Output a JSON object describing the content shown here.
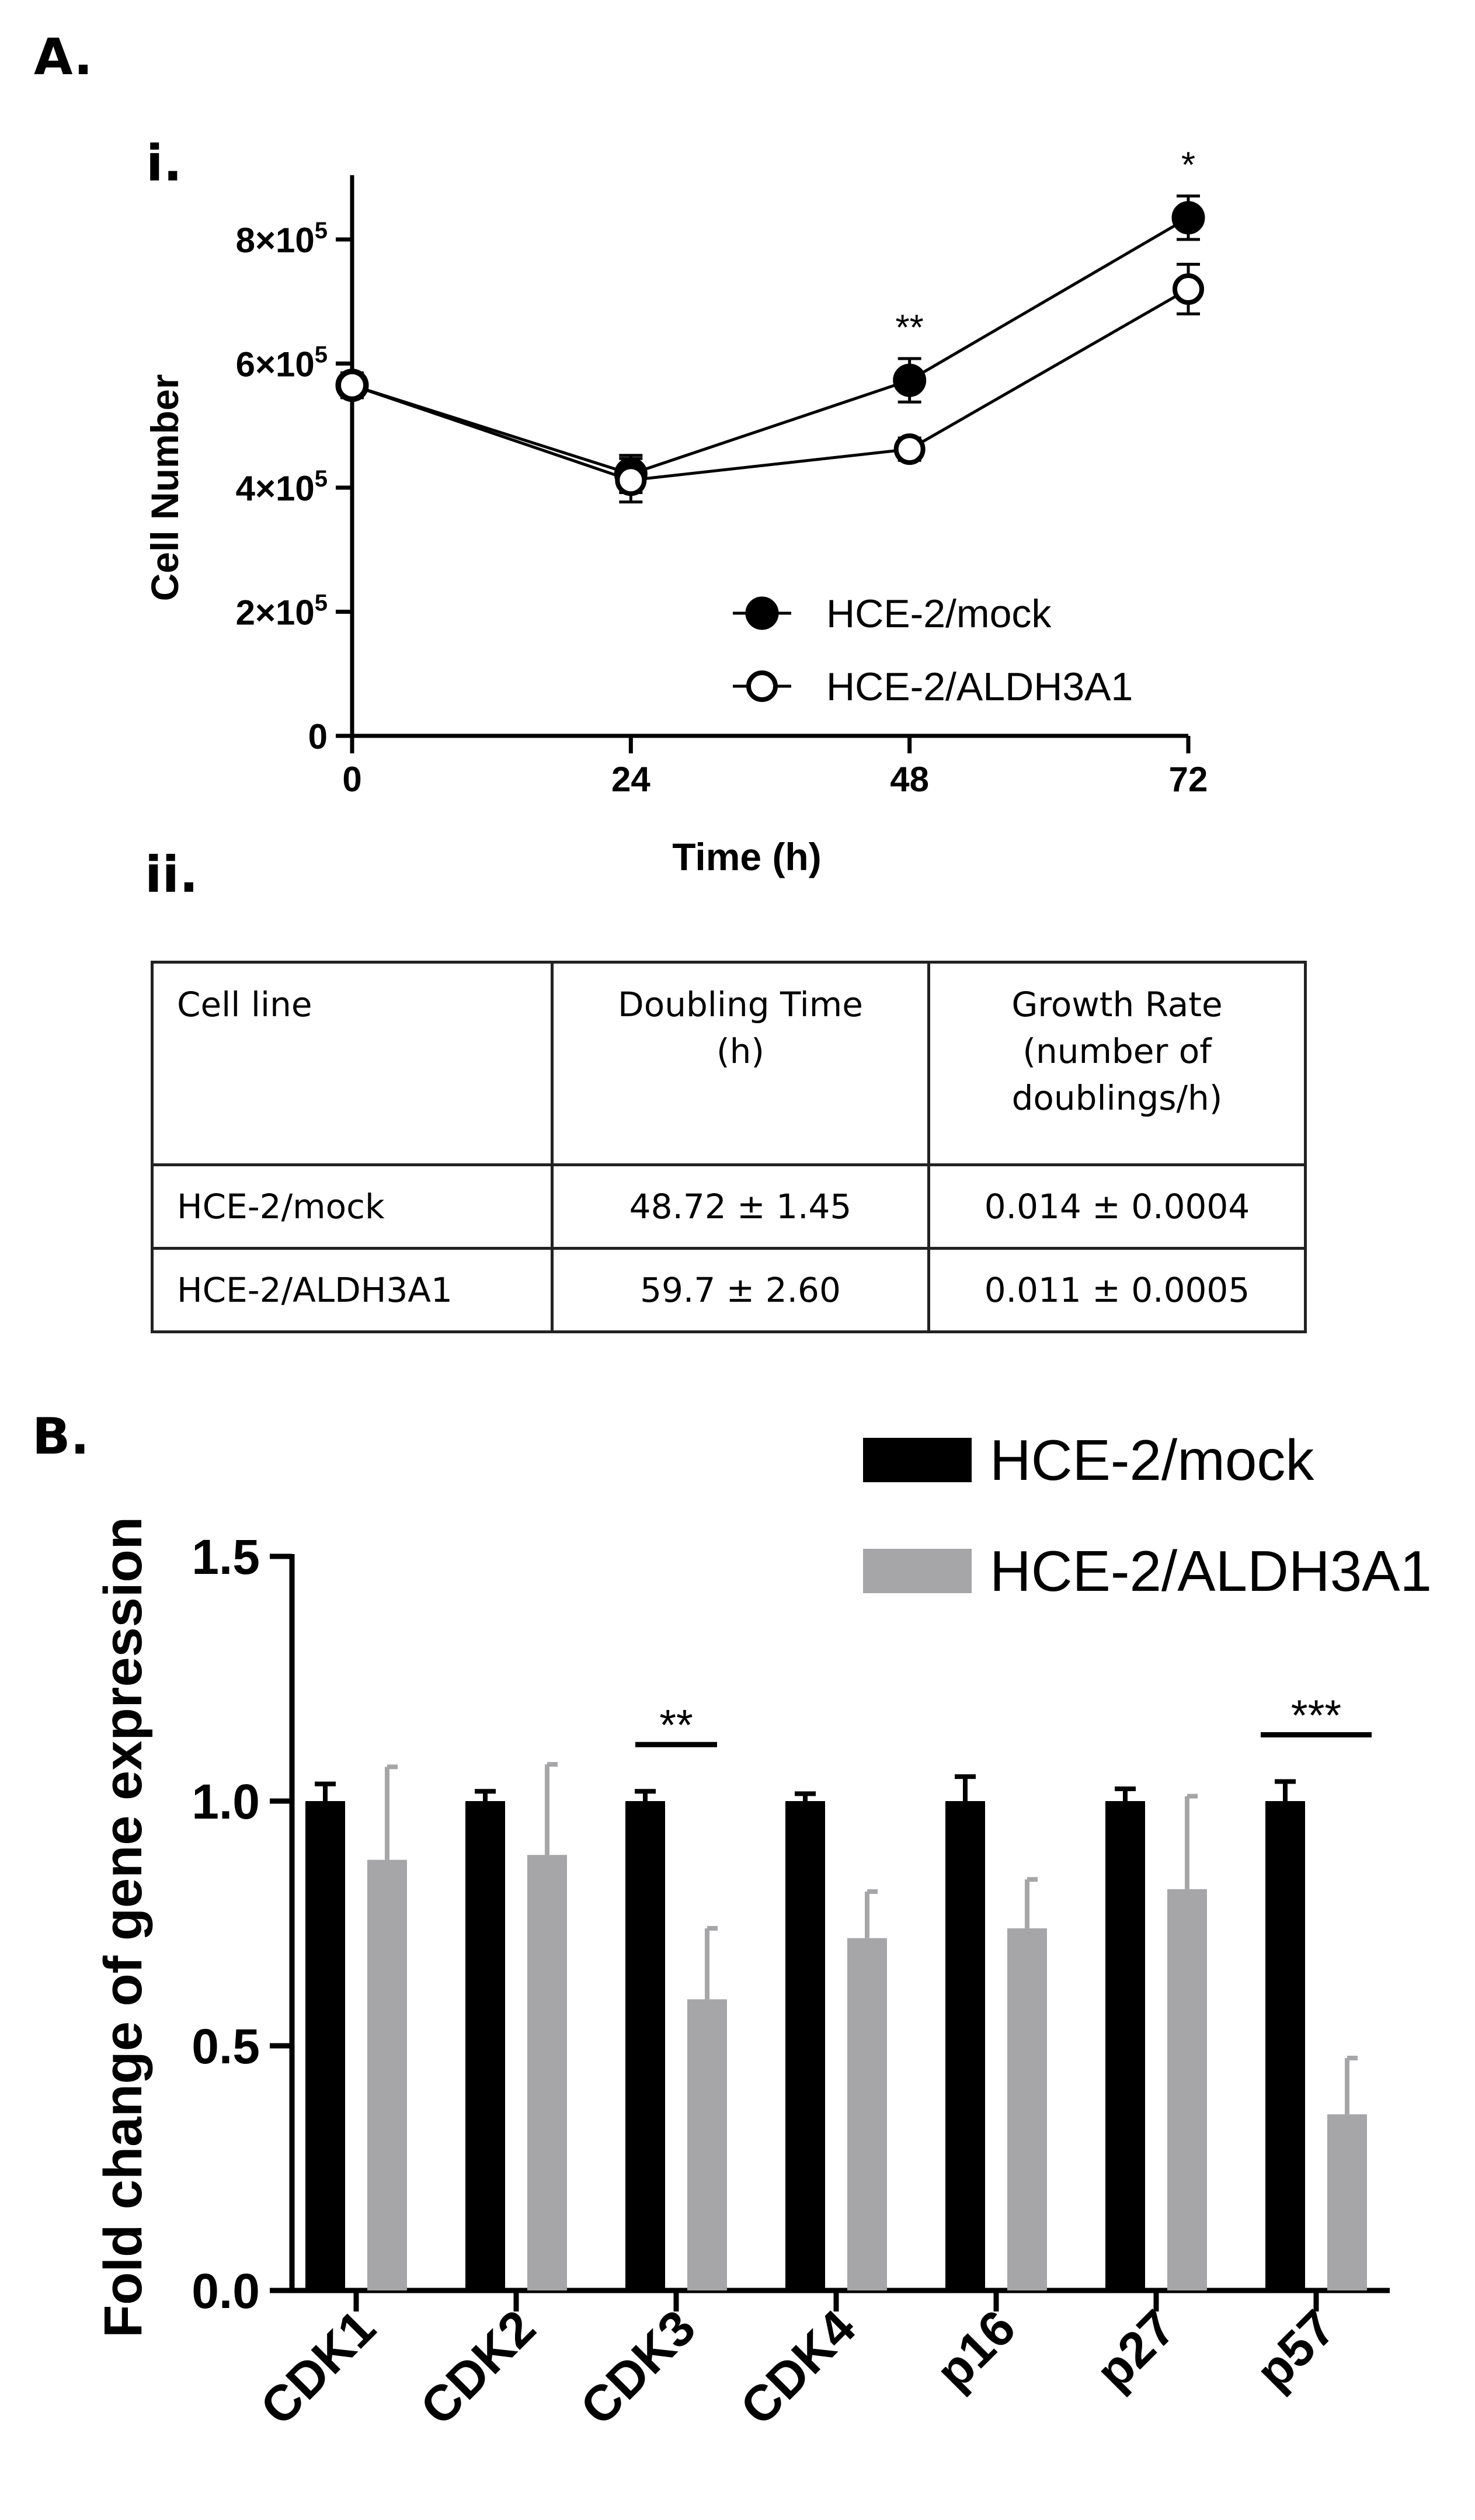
{
  "labels": {
    "A": "A.",
    "i": "i.",
    "ii": "ii.",
    "B": "B."
  },
  "chart_data": [
    {
      "type": "line",
      "xlabel": "Time (h)",
      "ylabel": "Cell Number",
      "x": [
        0,
        24,
        48,
        72
      ],
      "xticks": [
        "0",
        "24",
        "48",
        "72"
      ],
      "yticks": [
        {
          "value": 0,
          "base": "0",
          "exp": ""
        },
        {
          "value": 200000,
          "base": "2×10",
          "exp": "5"
        },
        {
          "value": 400000,
          "base": "4×10",
          "exp": "5"
        },
        {
          "value": 600000,
          "base": "6×10",
          "exp": "5"
        },
        {
          "value": 800000,
          "base": "8×10",
          "exp": "5"
        }
      ],
      "ylim": [
        0,
        800000
      ],
      "series": [
        {
          "name": "HCE-2/mock",
          "marker": "filled-circle",
          "values": [
            565000,
            422000,
            573000,
            835000
          ],
          "errors": [
            20000,
            30000,
            35000,
            35000
          ]
        },
        {
          "name": "HCE-2/ALDH3A1",
          "marker": "open-circle",
          "values": [
            565000,
            412000,
            462000,
            720000
          ],
          "errors": [
            20000,
            35000,
            18000,
            40000
          ]
        }
      ],
      "annotations": [
        {
          "x": 48,
          "text": "**"
        },
        {
          "x": 72,
          "text": "*"
        }
      ],
      "legend_position": "bottom-right"
    },
    {
      "type": "table",
      "header": [
        "Cell line",
        "Doubling Time (h)",
        "Growth Rate (number of doublings/h)"
      ],
      "header_lines": [
        [
          "Cell line"
        ],
        [
          "Doubling Time",
          "(h)"
        ],
        [
          "Growth Rate",
          "(number of",
          "doublings/h)"
        ]
      ],
      "rows": [
        [
          "HCE-2/mock",
          "48.72 ± 1.45",
          "0.014 ± 0.0004"
        ],
        [
          "HCE-2/ALDH3A1",
          "59.7 ± 2.60",
          "0.011 ± 0.0005"
        ]
      ]
    },
    {
      "type": "bar",
      "ylabel": "Fold change of gene expression",
      "categories": [
        "CDK1",
        "CDK2",
        "CDK3",
        "CDK4",
        "p16",
        "p27",
        "p57"
      ],
      "yticks": [
        "0.0",
        "0.5",
        "1.0",
        "1.5"
      ],
      "ylim": [
        0,
        1.5
      ],
      "series": [
        {
          "name": "HCE-2/mock",
          "color": "#000000",
          "values": [
            1.0,
            1.0,
            1.0,
            1.0,
            1.0,
            1.0,
            1.0
          ],
          "errors": [
            0.035,
            0.02,
            0.02,
            0.015,
            0.05,
            0.025,
            0.04
          ]
        },
        {
          "name": "HCE-2/ALDH3A1",
          "color": "#a6a6a8",
          "values": [
            0.88,
            0.89,
            0.595,
            0.72,
            0.74,
            0.82,
            0.36
          ],
          "errors": [
            0.19,
            0.185,
            0.145,
            0.095,
            0.1,
            0.19,
            0.115
          ]
        }
      ],
      "annotations": [
        {
          "category": "CDK3",
          "text": "**"
        },
        {
          "category": "p57",
          "text": "***"
        }
      ],
      "legend_position": "top-right"
    }
  ]
}
